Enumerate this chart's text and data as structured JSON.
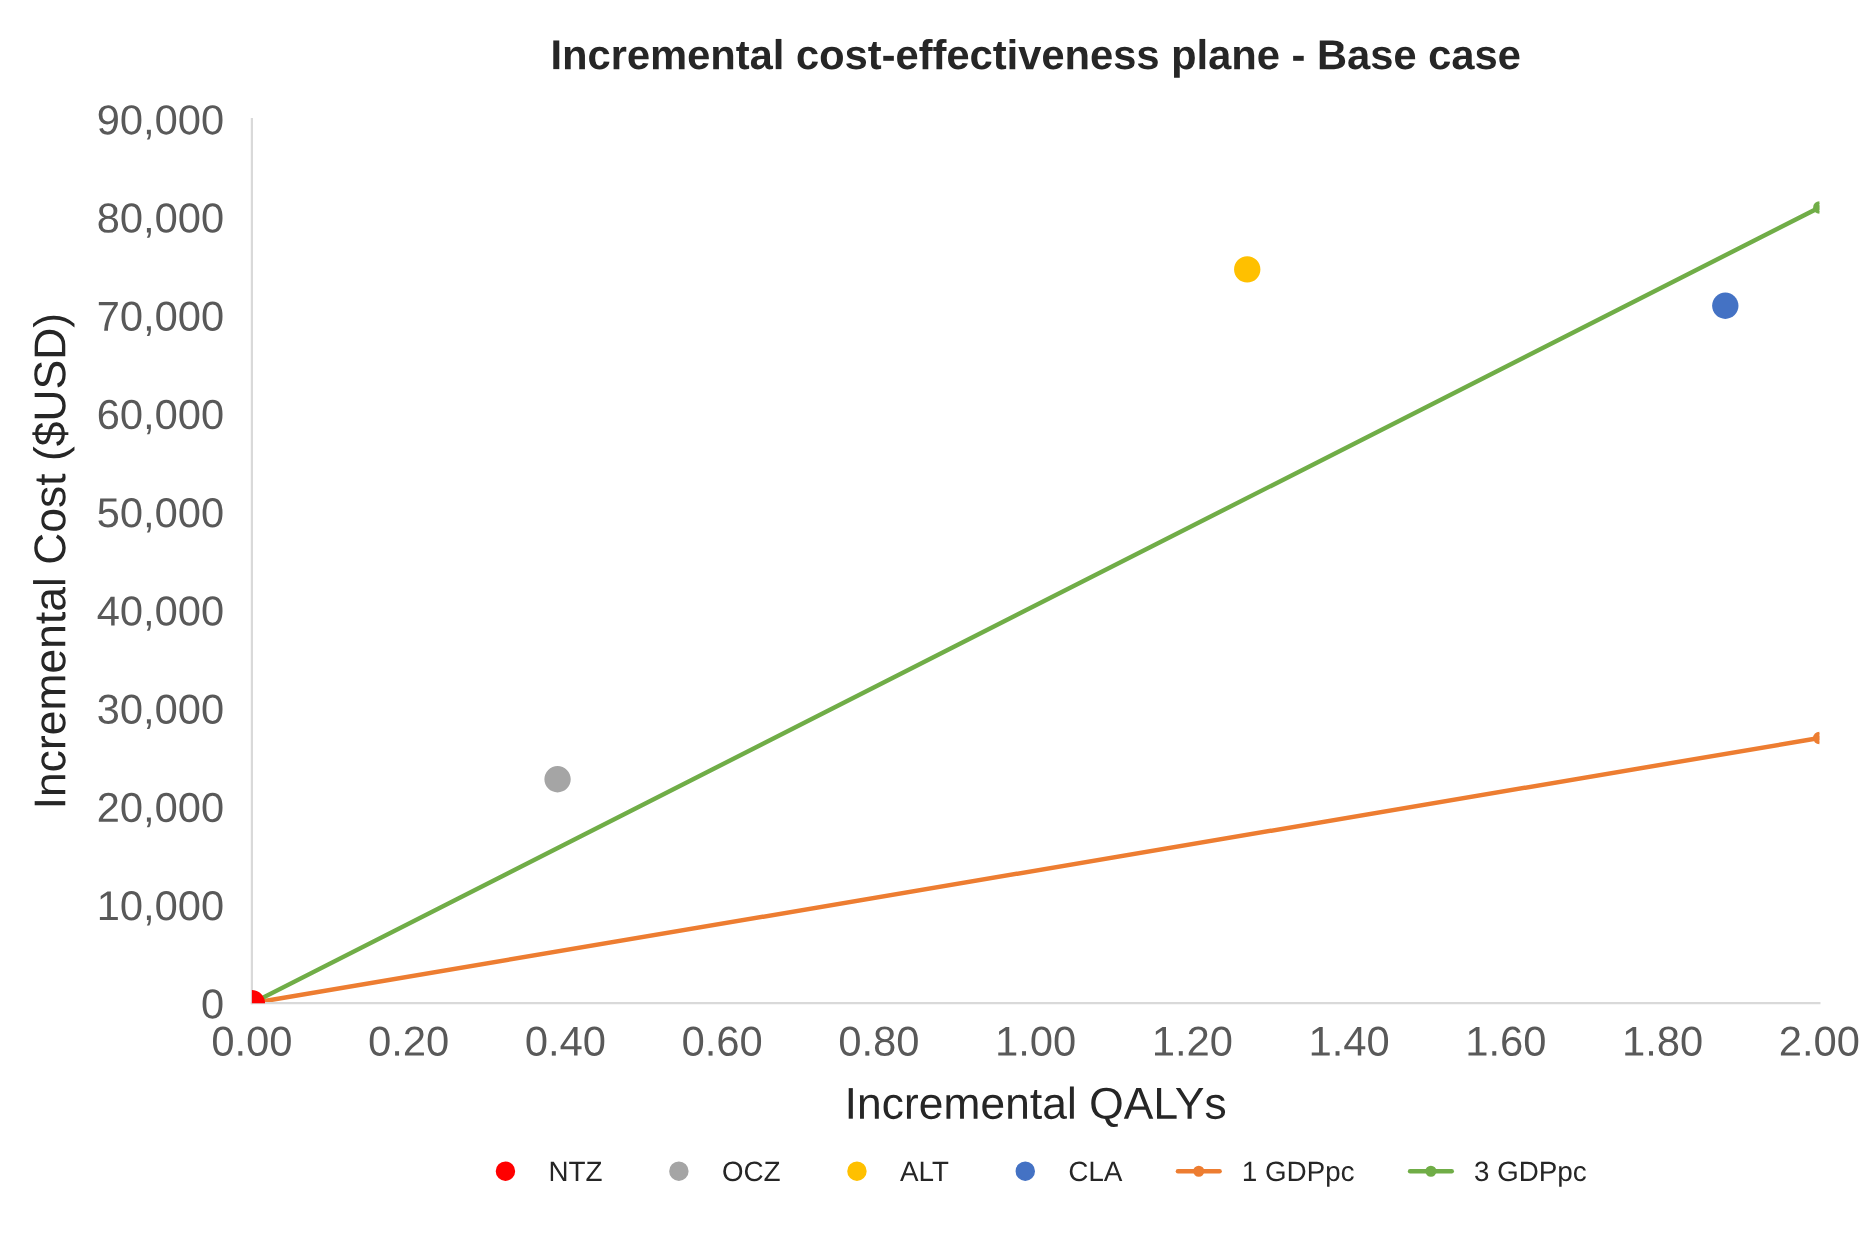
{
  "chart_data": {
    "type": "scatter",
    "title": "Incremental cost-effectiveness plane - Base case",
    "xlabel": "Incremental QALYs",
    "ylabel": "Incremental Cost ($USD)",
    "xlim": [
      0,
      2
    ],
    "xticks": [
      {
        "value": 0,
        "label": "0.00"
      },
      {
        "value": 0.2,
        "label": "0.20"
      },
      {
        "value": 0.4,
        "label": "0.40"
      },
      {
        "value": 0.6,
        "label": "0.60"
      },
      {
        "value": 0.8,
        "label": "0.80"
      },
      {
        "value": 1.0,
        "label": "1.00"
      },
      {
        "value": 1.2,
        "label": "1.20"
      },
      {
        "value": 1.4,
        "label": "1.40"
      },
      {
        "value": 1.6,
        "label": "1.60"
      },
      {
        "value": 1.8,
        "label": "1.80"
      },
      {
        "value": 2.0,
        "label": "2.00"
      }
    ],
    "ylim": [
      0,
      90000
    ],
    "yticks": [
      0,
      {
        "value": 10000,
        "label": "10,000"
      },
      {
        "value": 20000,
        "label": "20,000"
      },
      {
        "value": 30000,
        "label": "30,000"
      },
      {
        "value": 40000,
        "label": "40,000"
      },
      {
        "value": 50000,
        "label": "50,000"
      },
      {
        "value": 60000,
        "label": "60,000"
      },
      {
        "value": 70000,
        "label": "70,000"
      },
      {
        "value": 80000,
        "label": "80,000"
      },
      {
        "value": 90000,
        "label": "90,000"
      }
    ],
    "grid": false,
    "legend": "bottom",
    "series": [
      {
        "name": "NTZ",
        "color": "#ff0000",
        "marker": "circle",
        "x": [
          0
        ],
        "values": [
          0
        ]
      },
      {
        "name": "OCZ",
        "color": "#a5a5a5",
        "marker": "circle",
        "x": [
          0.39
        ],
        "values": [
          22800
        ]
      },
      {
        "name": "ALT",
        "color": "#ffc000",
        "marker": "circle",
        "x": [
          1.27
        ],
        "values": [
          74700
        ]
      },
      {
        "name": "CLA",
        "color": "#4472c4",
        "marker": "circle",
        "x": [
          1.88
        ],
        "values": [
          71000
        ]
      },
      {
        "name": "1 GDPpc",
        "type": "line",
        "color": "#ed7d31",
        "marker": "circle",
        "x": [
          0,
          2
        ],
        "values": [
          0,
          27000
        ]
      },
      {
        "name": "3 GDPpc",
        "type": "line",
        "color": "#70ad47",
        "marker": "circle",
        "x": [
          0,
          2
        ],
        "values": [
          0,
          81000
        ]
      }
    ]
  }
}
